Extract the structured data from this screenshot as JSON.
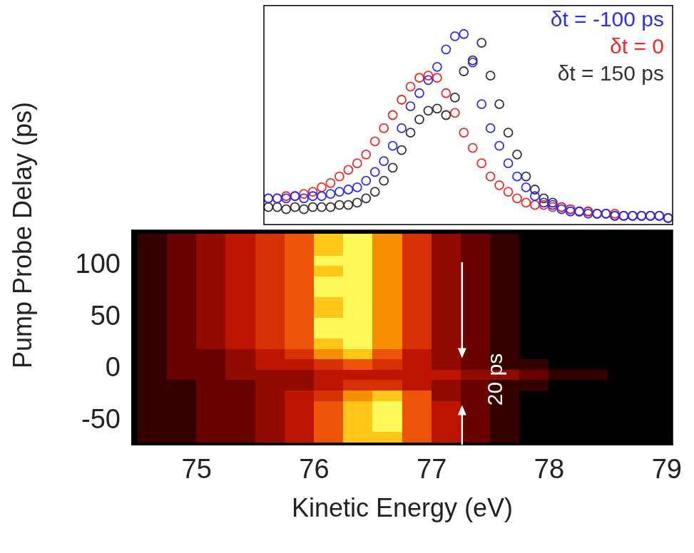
{
  "chart_data": [
    {
      "type": "scatter",
      "xlim": [
        74.45,
        79.05
      ],
      "ylim": [
        0,
        1
      ],
      "tick_labels": false,
      "legend": "upper right",
      "marker": "open_circle",
      "x": [
        74.5,
        74.6,
        74.7,
        74.8,
        74.9,
        75.0,
        75.1,
        75.2,
        75.3,
        75.4,
        75.5,
        75.6,
        75.7,
        75.8,
        75.9,
        76.0,
        76.1,
        76.2,
        76.3,
        76.4,
        76.5,
        76.6,
        76.7,
        76.8,
        76.9,
        77.0,
        77.1,
        77.2,
        77.3,
        77.4,
        77.5,
        77.6,
        77.7,
        77.8,
        77.9,
        78.0,
        78.1,
        78.2,
        78.3,
        78.4,
        78.5,
        78.6,
        78.7,
        78.8,
        78.9,
        79.0
      ],
      "series": [
        {
          "name": "δt = -100 ps",
          "color": "#2e2ef0",
          "values": [
            0.12,
            0.12,
            0.12,
            0.13,
            0.12,
            0.13,
            0.13,
            0.14,
            0.15,
            0.16,
            0.17,
            0.2,
            0.24,
            0.29,
            0.36,
            0.44,
            0.54,
            0.6,
            0.66,
            0.72,
            0.8,
            0.86,
            0.87,
            0.74,
            0.55,
            0.44,
            0.36,
            0.28,
            0.22,
            0.17,
            0.13,
            0.1,
            0.09,
            0.07,
            0.06,
            0.06,
            0.05,
            0.05,
            0.05,
            0.04,
            0.04,
            0.04,
            0.04,
            0.04,
            0.04,
            0.03
          ]
        },
        {
          "name": "δt = 0",
          "color": "#f02a2a",
          "values": [
            0.12,
            0.12,
            0.13,
            0.13,
            0.14,
            0.15,
            0.17,
            0.19,
            0.22,
            0.25,
            0.28,
            0.32,
            0.38,
            0.44,
            0.5,
            0.57,
            0.63,
            0.67,
            0.68,
            0.67,
            0.6,
            0.51,
            0.42,
            0.35,
            0.28,
            0.22,
            0.18,
            0.15,
            0.12,
            0.1,
            0.09,
            0.09,
            0.08,
            0.08,
            0.07,
            0.06,
            0.06,
            0.05,
            0.05,
            0.05,
            0.04,
            0.04,
            0.04,
            0.04,
            0.04,
            0.03
          ]
        },
        {
          "name": "δt = 150 ps",
          "color": "#333333",
          "values": [
            0.08,
            0.08,
            0.07,
            0.08,
            0.07,
            0.08,
            0.08,
            0.08,
            0.09,
            0.09,
            0.1,
            0.12,
            0.15,
            0.2,
            0.26,
            0.34,
            0.42,
            0.48,
            0.52,
            0.53,
            0.5,
            0.58,
            0.7,
            0.75,
            0.83,
            0.68,
            0.55,
            0.42,
            0.32,
            0.22,
            0.16,
            0.12,
            0.1,
            0.08,
            0.07,
            0.06,
            0.06,
            0.05,
            0.05,
            0.04,
            0.04,
            0.04,
            0.04,
            0.04,
            0.04,
            0.03
          ]
        }
      ]
    },
    {
      "type": "heatmap",
      "xlabel": "Kinetic Energy (eV)",
      "ylabel": "Pump Probe Delay (ps)",
      "xlim": [
        74.45,
        79.05
      ],
      "ylim": [
        -73,
        134
      ],
      "xticks": [
        75,
        76,
        77,
        78,
        79
      ],
      "yticks": [
        -50,
        0,
        50,
        100
      ],
      "x_edges": [
        74.5,
        74.75,
        75.0,
        75.25,
        75.5,
        75.75,
        76.0,
        76.25,
        76.5,
        76.75,
        77.0,
        77.25,
        77.5,
        77.75,
        78.0,
        78.25,
        78.5,
        78.75,
        79.0
      ],
      "y_edges": [
        -70,
        -60,
        -50,
        -40,
        -30,
        -20,
        -10,
        0,
        10,
        20,
        30,
        40,
        50,
        60,
        70,
        80,
        90,
        100,
        110,
        120,
        130
      ],
      "zlim": [
        0,
        9
      ],
      "cells": [
        [
          1,
          1,
          2,
          2,
          3,
          4,
          6,
          8,
          8,
          6,
          4,
          2,
          1,
          0,
          0,
          0,
          0,
          0
        ],
        [
          1,
          1,
          2,
          2,
          3,
          4,
          6,
          8,
          9,
          6,
          4,
          2,
          1,
          0,
          0,
          0,
          0,
          0
        ],
        [
          1,
          1,
          2,
          2,
          3,
          4,
          6,
          8,
          9,
          6,
          4,
          2,
          1,
          0,
          0,
          0,
          0,
          0
        ],
        [
          1,
          1,
          2,
          2,
          3,
          4,
          6,
          8,
          9,
          6,
          4,
          2,
          1,
          0,
          0,
          0,
          0,
          0
        ],
        [
          1,
          1,
          2,
          2,
          3,
          4,
          5,
          7,
          8,
          6,
          3,
          2,
          1,
          0,
          0,
          0,
          0,
          0
        ],
        [
          1,
          1,
          2,
          2,
          3,
          3,
          4,
          5,
          5,
          4,
          3,
          2,
          1,
          1,
          0,
          0,
          0,
          0
        ],
        [
          1,
          2,
          2,
          3,
          3,
          3,
          4,
          4,
          4,
          4,
          4,
          3,
          3,
          2,
          1,
          1,
          0,
          0
        ],
        [
          1,
          2,
          2,
          3,
          4,
          4,
          5,
          6,
          5,
          4,
          3,
          2,
          1,
          1,
          0,
          0,
          0,
          0
        ],
        [
          1,
          2,
          2,
          3,
          4,
          5,
          7,
          8,
          6,
          4,
          3,
          2,
          1,
          0,
          0,
          0,
          0,
          0
        ],
        [
          1,
          2,
          3,
          4,
          5,
          6,
          8,
          9,
          7,
          5,
          3,
          2,
          1,
          0,
          0,
          0,
          0,
          0
        ],
        [
          1,
          2,
          3,
          4,
          5,
          6,
          9,
          9,
          7,
          5,
          3,
          2,
          1,
          0,
          0,
          0,
          0,
          0
        ],
        [
          1,
          2,
          3,
          4,
          5,
          6,
          9,
          9,
          7,
          5,
          3,
          2,
          1,
          0,
          0,
          0,
          0,
          0
        ],
        [
          1,
          2,
          3,
          4,
          5,
          6,
          8,
          9,
          7,
          5,
          3,
          2,
          1,
          0,
          0,
          0,
          0,
          0
        ],
        [
          1,
          2,
          3,
          4,
          5,
          6,
          8,
          9,
          7,
          5,
          3,
          2,
          1,
          0,
          0,
          0,
          0,
          0
        ],
        [
          1,
          2,
          3,
          4,
          5,
          6,
          9,
          9,
          7,
          5,
          3,
          2,
          1,
          0,
          0,
          0,
          0,
          0
        ],
        [
          1,
          2,
          3,
          4,
          5,
          6,
          9,
          9,
          7,
          5,
          3,
          2,
          1,
          0,
          0,
          0,
          0,
          0
        ],
        [
          1,
          2,
          3,
          4,
          5,
          6,
          8,
          9,
          7,
          5,
          3,
          2,
          1,
          0,
          0,
          0,
          0,
          0
        ],
        [
          1,
          2,
          3,
          4,
          5,
          6,
          9,
          9,
          7,
          5,
          3,
          2,
          1,
          0,
          0,
          0,
          0,
          0
        ],
        [
          1,
          2,
          3,
          4,
          5,
          6,
          8,
          9,
          7,
          5,
          3,
          2,
          1,
          0,
          0,
          0,
          0,
          0
        ],
        [
          1,
          2,
          3,
          4,
          5,
          6,
          8,
          9,
          7,
          5,
          3,
          2,
          1,
          0,
          0,
          0,
          0,
          0
        ]
      ],
      "annotations": [
        {
          "text": "20 ps",
          "x": 77.55,
          "y": -10
        }
      ]
    }
  ]
}
